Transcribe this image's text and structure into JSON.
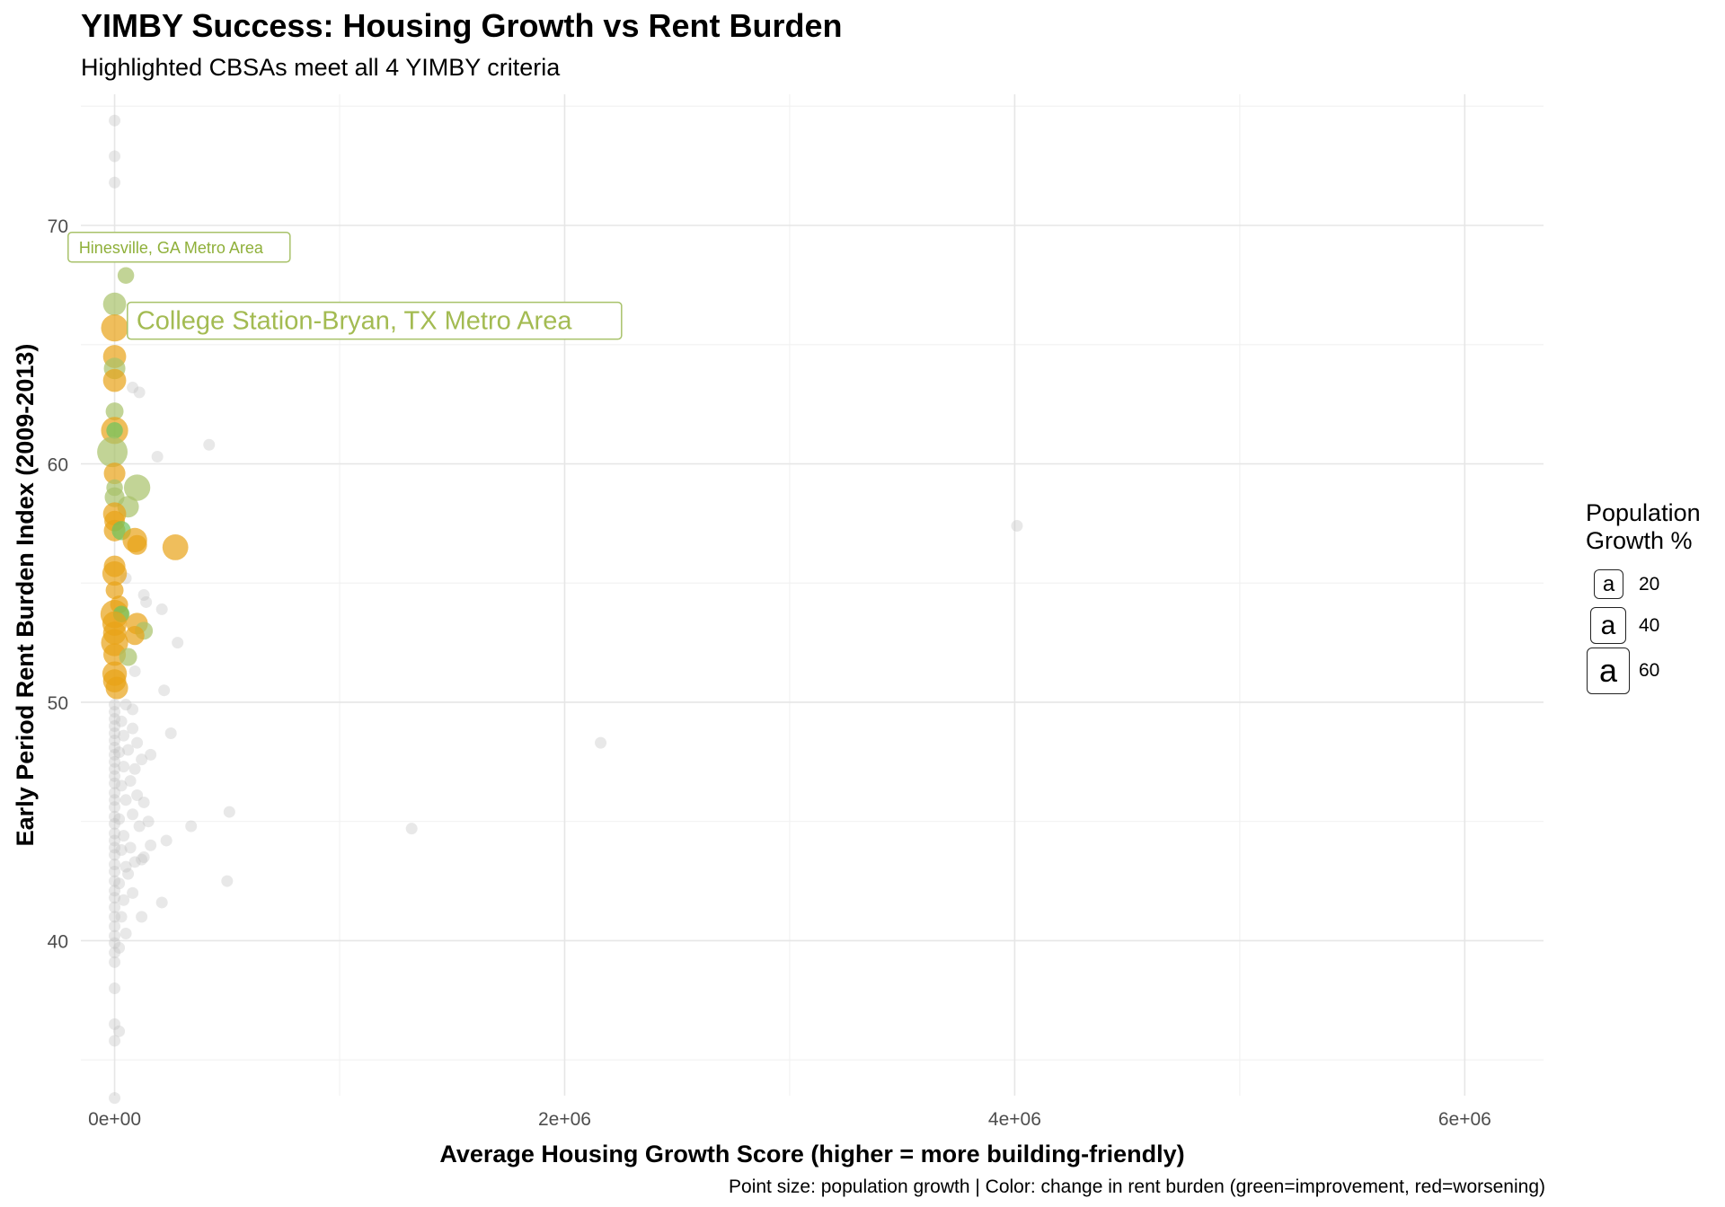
{
  "chart_data": {
    "type": "scatter",
    "title": "YIMBY Success: Housing Growth vs Rent Burden",
    "subtitle": "Highlighted CBSAs meet all 4 YIMBY criteria",
    "xlabel": "Average Housing Growth Score (higher = more building-friendly)",
    "ylabel": "Early Period Rent Burden Index (2009-2013)",
    "caption": "Point size: population growth | Color: change in rent burden (green=improvement, red=worsening)",
    "xlim": [
      -150000,
      6350000
    ],
    "ylim": [
      33.5,
      75.5
    ],
    "x_ticks": [
      0,
      2000000,
      4000000,
      6000000
    ],
    "x_tick_labels": [
      "0e+00",
      "2e+06",
      "4e+06",
      "6e+06"
    ],
    "y_ticks": [
      40,
      50,
      60,
      70
    ],
    "y_tick_labels": [
      "40",
      "50",
      "60",
      "70"
    ],
    "grid": true,
    "legend": {
      "title": "Population\nGrowth %",
      "position": "right",
      "key_glyph": "a",
      "entries": [
        {
          "label": "20",
          "value": 20
        },
        {
          "label": "40",
          "value": 40
        },
        {
          "label": "60",
          "value": 60
        }
      ]
    },
    "colors": {
      "gray": "#bdbdbd",
      "orange": "#e8a317",
      "olive": "#a8c26a",
      "green": "#6cc35e"
    },
    "annotations": [
      {
        "text": "Hinesville, GA Metro Area",
        "x": 5000,
        "y": 67.9,
        "size": "small"
      },
      {
        "text": "College Station-Bryan, TX Metro Area",
        "x": 5000,
        "y": 66.7,
        "size": "large"
      }
    ],
    "highlighted": [
      {
        "x": 50000,
        "y": 67.9,
        "pop": 12,
        "color": "olive"
      },
      {
        "x": 0,
        "y": 66.7,
        "pop": 30,
        "color": "olive"
      },
      {
        "x": 0,
        "y": 65.7,
        "pop": 45,
        "color": "orange"
      },
      {
        "x": 0,
        "y": 64.5,
        "pop": 30,
        "color": "orange"
      },
      {
        "x": 0,
        "y": 64.0,
        "pop": 25,
        "color": "olive"
      },
      {
        "x": 0,
        "y": 63.5,
        "pop": 30,
        "color": "orange"
      },
      {
        "x": 0,
        "y": 62.2,
        "pop": 15,
        "color": "olive"
      },
      {
        "x": 0,
        "y": 61.4,
        "pop": 45,
        "color": "orange"
      },
      {
        "x": 0,
        "y": 61.4,
        "pop": 12,
        "color": "green"
      },
      {
        "x": -10000,
        "y": 60.5,
        "pop": 60,
        "color": "olive"
      },
      {
        "x": 0,
        "y": 59.6,
        "pop": 25,
        "color": "orange"
      },
      {
        "x": 0,
        "y": 59.0,
        "pop": 12,
        "color": "olive"
      },
      {
        "x": 100000,
        "y": 59.0,
        "pop": 42,
        "color": "olive"
      },
      {
        "x": 0,
        "y": 58.6,
        "pop": 20,
        "color": "olive"
      },
      {
        "x": 60000,
        "y": 58.2,
        "pop": 25,
        "color": "olive"
      },
      {
        "x": 0,
        "y": 57.9,
        "pop": 30,
        "color": "orange"
      },
      {
        "x": 0,
        "y": 57.6,
        "pop": 22,
        "color": "orange"
      },
      {
        "x": 0,
        "y": 57.2,
        "pop": 25,
        "color": "orange"
      },
      {
        "x": 30000,
        "y": 57.2,
        "pop": 18,
        "color": "green"
      },
      {
        "x": 90000,
        "y": 56.8,
        "pop": 35,
        "color": "orange"
      },
      {
        "x": 100000,
        "y": 56.6,
        "pop": 20,
        "color": "orange"
      },
      {
        "x": 270000,
        "y": 56.5,
        "pop": 40,
        "color": "orange"
      },
      {
        "x": 0,
        "y": 55.7,
        "pop": 25,
        "color": "orange"
      },
      {
        "x": 0,
        "y": 55.4,
        "pop": 35,
        "color": "orange"
      },
      {
        "x": 0,
        "y": 54.7,
        "pop": 15,
        "color": "orange"
      },
      {
        "x": 20000,
        "y": 54.1,
        "pop": 15,
        "color": "orange"
      },
      {
        "x": 0,
        "y": 53.7,
        "pop": 50,
        "color": "orange"
      },
      {
        "x": 30000,
        "y": 53.7,
        "pop": 12,
        "color": "green"
      },
      {
        "x": 0,
        "y": 53.3,
        "pop": 35,
        "color": "orange"
      },
      {
        "x": 100000,
        "y": 53.3,
        "pop": 25,
        "color": "orange"
      },
      {
        "x": 130000,
        "y": 53.0,
        "pop": 15,
        "color": "olive"
      },
      {
        "x": 0,
        "y": 52.9,
        "pop": 30,
        "color": "orange"
      },
      {
        "x": 0,
        "y": 52.5,
        "pop": 45,
        "color": "orange"
      },
      {
        "x": 90000,
        "y": 52.8,
        "pop": 18,
        "color": "orange"
      },
      {
        "x": 0,
        "y": 52.0,
        "pop": 28,
        "color": "orange"
      },
      {
        "x": 60000,
        "y": 51.9,
        "pop": 15,
        "color": "olive"
      },
      {
        "x": 0,
        "y": 51.2,
        "pop": 35,
        "color": "orange"
      },
      {
        "x": 0,
        "y": 50.9,
        "pop": 30,
        "color": "orange"
      },
      {
        "x": 10000,
        "y": 50.6,
        "pop": 28,
        "color": "orange"
      }
    ],
    "other": [
      {
        "x": 0,
        "y": 74.4
      },
      {
        "x": 0,
        "y": 72.9
      },
      {
        "x": 0,
        "y": 71.8
      },
      {
        "x": 80000,
        "y": 63.2
      },
      {
        "x": 110000,
        "y": 63.0
      },
      {
        "x": 190000,
        "y": 60.3
      },
      {
        "x": 420000,
        "y": 60.8
      },
      {
        "x": 50000,
        "y": 55.2
      },
      {
        "x": 130000,
        "y": 54.5
      },
      {
        "x": 140000,
        "y": 54.2
      },
      {
        "x": 210000,
        "y": 53.9
      },
      {
        "x": 280000,
        "y": 52.5
      },
      {
        "x": 90000,
        "y": 51.3
      },
      {
        "x": 220000,
        "y": 50.5
      },
      {
        "x": 50000,
        "y": 49.9
      },
      {
        "x": 80000,
        "y": 49.7
      },
      {
        "x": 0,
        "y": 49.9
      },
      {
        "x": 0,
        "y": 49.6
      },
      {
        "x": 0,
        "y": 49.3
      },
      {
        "x": 0,
        "y": 49.0
      },
      {
        "x": 0,
        "y": 48.7
      },
      {
        "x": 0,
        "y": 48.4
      },
      {
        "x": 0,
        "y": 48.1
      },
      {
        "x": 0,
        "y": 47.8
      },
      {
        "x": 0,
        "y": 47.5
      },
      {
        "x": 0,
        "y": 47.2
      },
      {
        "x": 0,
        "y": 46.9
      },
      {
        "x": 0,
        "y": 46.6
      },
      {
        "x": 0,
        "y": 46.2
      },
      {
        "x": 0,
        "y": 45.9
      },
      {
        "x": 0,
        "y": 45.6
      },
      {
        "x": 0,
        "y": 45.2
      },
      {
        "x": 0,
        "y": 44.9
      },
      {
        "x": 0,
        "y": 44.5
      },
      {
        "x": 0,
        "y": 44.2
      },
      {
        "x": 0,
        "y": 43.9
      },
      {
        "x": 0,
        "y": 43.6
      },
      {
        "x": 0,
        "y": 43.2
      },
      {
        "x": 0,
        "y": 42.9
      },
      {
        "x": 0,
        "y": 42.5
      },
      {
        "x": 0,
        "y": 42.1
      },
      {
        "x": 0,
        "y": 41.8
      },
      {
        "x": 0,
        "y": 41.4
      },
      {
        "x": 0,
        "y": 41.0
      },
      {
        "x": 0,
        "y": 40.6
      },
      {
        "x": 0,
        "y": 40.2
      },
      {
        "x": 0,
        "y": 39.9
      },
      {
        "x": 0,
        "y": 39.5
      },
      {
        "x": 0,
        "y": 39.1
      },
      {
        "x": 30000,
        "y": 49.2
      },
      {
        "x": 40000,
        "y": 48.6
      },
      {
        "x": 20000,
        "y": 47.9
      },
      {
        "x": 40000,
        "y": 47.3
      },
      {
        "x": 30000,
        "y": 46.5
      },
      {
        "x": 50000,
        "y": 45.9
      },
      {
        "x": 20000,
        "y": 45.1
      },
      {
        "x": 40000,
        "y": 44.4
      },
      {
        "x": 30000,
        "y": 43.8
      },
      {
        "x": 50000,
        "y": 43.1
      },
      {
        "x": 20000,
        "y": 42.4
      },
      {
        "x": 40000,
        "y": 41.7
      },
      {
        "x": 30000,
        "y": 41.0
      },
      {
        "x": 50000,
        "y": 40.3
      },
      {
        "x": 20000,
        "y": 39.7
      },
      {
        "x": 80000,
        "y": 48.9
      },
      {
        "x": 60000,
        "y": 48.0
      },
      {
        "x": 90000,
        "y": 47.2
      },
      {
        "x": 70000,
        "y": 46.7
      },
      {
        "x": 100000,
        "y": 46.1
      },
      {
        "x": 80000,
        "y": 45.3
      },
      {
        "x": 110000,
        "y": 44.8
      },
      {
        "x": 70000,
        "y": 43.9
      },
      {
        "x": 90000,
        "y": 43.3
      },
      {
        "x": 60000,
        "y": 42.8
      },
      {
        "x": 80000,
        "y": 42.0
      },
      {
        "x": 100000,
        "y": 48.3
      },
      {
        "x": 120000,
        "y": 47.6
      },
      {
        "x": 130000,
        "y": 45.8
      },
      {
        "x": 120000,
        "y": 43.4
      },
      {
        "x": 160000,
        "y": 47.8
      },
      {
        "x": 150000,
        "y": 45.0
      },
      {
        "x": 160000,
        "y": 44.0
      },
      {
        "x": 130000,
        "y": 43.5
      },
      {
        "x": 120000,
        "y": 41.0
      },
      {
        "x": 250000,
        "y": 48.7
      },
      {
        "x": 230000,
        "y": 44.2
      },
      {
        "x": 210000,
        "y": 41.6
      },
      {
        "x": 340000,
        "y": 44.8
      },
      {
        "x": 510000,
        "y": 45.4
      },
      {
        "x": 500000,
        "y": 42.5
      },
      {
        "x": 1320000,
        "y": 44.7
      },
      {
        "x": 2160000,
        "y": 48.3
      },
      {
        "x": 4010000,
        "y": 57.4
      },
      {
        "x": 0,
        "y": 38.0
      },
      {
        "x": 0,
        "y": 36.5
      },
      {
        "x": 20000,
        "y": 36.2
      },
      {
        "x": 0,
        "y": 35.8
      },
      {
        "x": 0,
        "y": 33.4
      }
    ]
  }
}
